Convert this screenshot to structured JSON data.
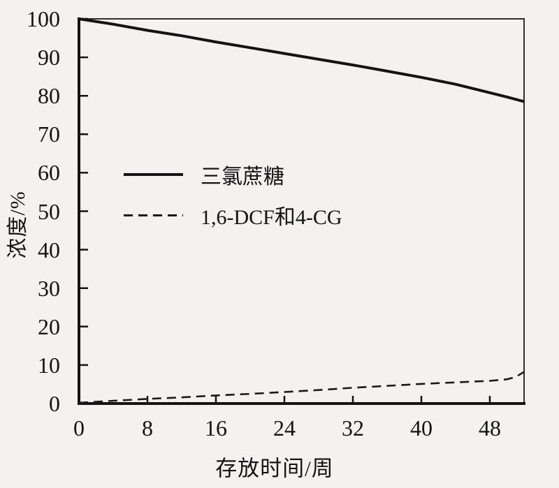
{
  "chart_data": {
    "type": "line",
    "title": "",
    "xlabel": "存放时间/周",
    "ylabel": "浓度/%",
    "xlim": [
      0,
      52
    ],
    "ylim": [
      0,
      100
    ],
    "x_ticks": [
      0,
      8,
      16,
      24,
      32,
      40,
      48
    ],
    "y_ticks": [
      0,
      10,
      20,
      30,
      40,
      50,
      60,
      70,
      80,
      90,
      100
    ],
    "grid": false,
    "legend_position": "inside-left-middle",
    "frame": "full-box",
    "series": [
      {
        "name": "三氯蔗糖",
        "line_style": "solid",
        "color": "#141414",
        "x": [
          0,
          4,
          8,
          12,
          16,
          20,
          24,
          28,
          32,
          36,
          40,
          44,
          48,
          50,
          52
        ],
        "y": [
          100,
          98.6,
          97,
          95.6,
          94,
          92.5,
          91,
          89.5,
          88,
          86.4,
          84.8,
          83,
          80.8,
          79.7,
          78.5
        ]
      },
      {
        "name": "1,6-DCF和4-CG",
        "line_style": "dashed",
        "color": "#1a1a1a",
        "x": [
          0,
          4,
          8,
          12,
          16,
          20,
          24,
          28,
          32,
          36,
          40,
          44,
          48,
          50,
          51,
          52
        ],
        "y": [
          0.2,
          0.7,
          1.2,
          1.6,
          2.1,
          2.5,
          3.0,
          3.5,
          4.1,
          4.6,
          5.1,
          5.5,
          5.9,
          6.3,
          6.9,
          8.2
        ]
      }
    ]
  },
  "colors": {
    "ink": "#141414",
    "paper": "#f3f2ee"
  }
}
